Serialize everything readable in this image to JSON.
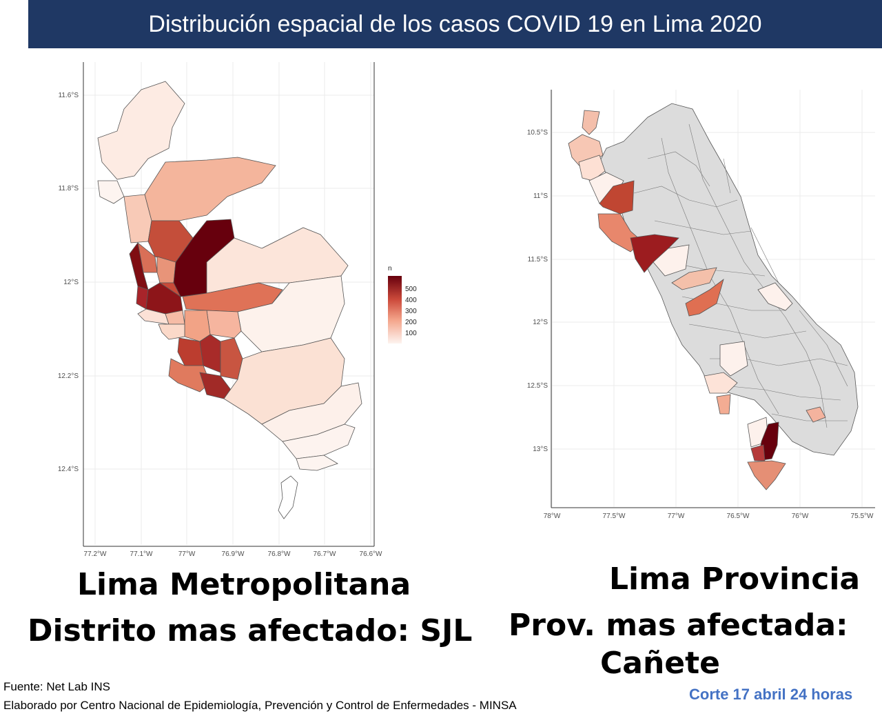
{
  "title": "Distribución espacial de los casos COVID 19 en Lima 2020",
  "maps": {
    "metro": {
      "lat_ticks": [
        "11.6°S",
        "11.8°S",
        "12°S",
        "12.2°S",
        "12.4°S"
      ],
      "lon_ticks": [
        "77.2°W",
        "77.1°W",
        "77°W",
        "76.9°W",
        "76.8°W",
        "76.7°W",
        "76.6°W"
      ],
      "legend": {
        "title": "n",
        "labels": [
          "500",
          "400",
          "300",
          "200",
          "100"
        ],
        "color_low": "#fdf4f0",
        "color_high": "#67000d"
      }
    },
    "provincia": {
      "lat_ticks": [
        "10.5°S",
        "11°S",
        "11.5°S",
        "12°S",
        "12.5°S",
        "13°S"
      ],
      "lon_ticks": [
        "78°W",
        "77.5°W",
        "77°W",
        "76.5°W",
        "76°W",
        "75.5°W"
      ],
      "no_data_color": "#dddddd"
    }
  },
  "captions": {
    "metro_title": "Lima Metropolitana",
    "metro_sub": "Distrito mas afectado: SJL",
    "prov_title": "Lima Provincia",
    "prov_sub1": "Prov. mas afectada:",
    "prov_sub2": "Cañete"
  },
  "footer": {
    "source": "Fuente: Net Lab INS",
    "credit": "Elaborado por Centro Nacional de Epidemiología, Prevención y Control de Enfermedades - MINSA",
    "cutoff": "Corte 17 abril 24 horas"
  }
}
